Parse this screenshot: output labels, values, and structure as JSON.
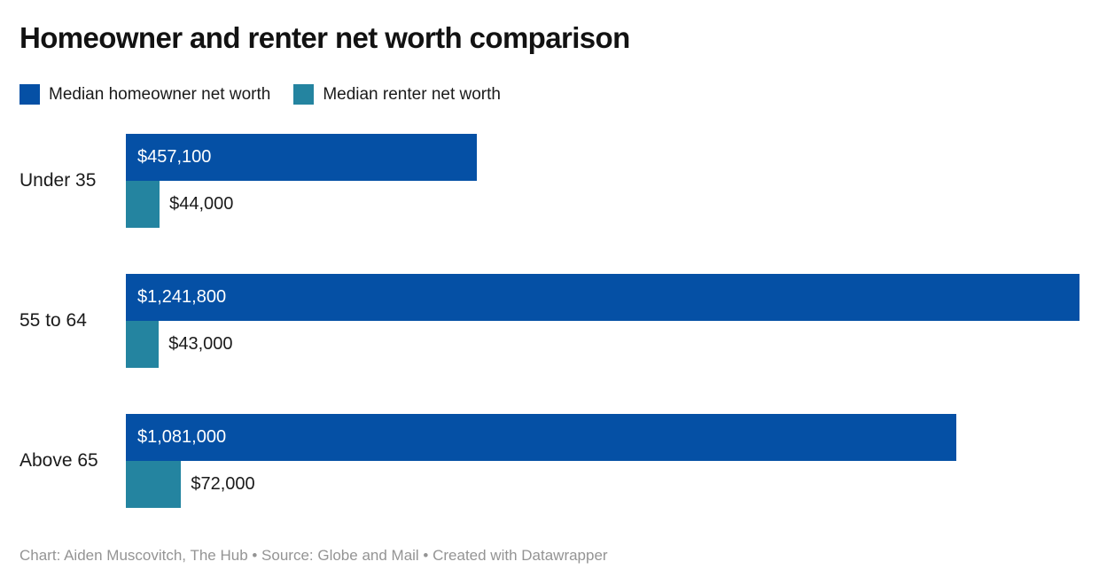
{
  "title": "Homeowner and renter net worth comparison",
  "legend": {
    "items": [
      {
        "label": "Median homeowner net worth",
        "color": "#0550a5"
      },
      {
        "label": "Median renter net worth",
        "color": "#2484a0"
      }
    ]
  },
  "chart_data": {
    "type": "bar",
    "orientation": "horizontal",
    "title": "Homeowner and renter net worth comparison",
    "categories": [
      "Under 35",
      "55 to 64",
      "Above 65"
    ],
    "series": [
      {
        "name": "Median homeowner net worth",
        "color": "#0550a5",
        "values": [
          457100,
          1241800,
          1081000
        ],
        "value_labels": [
          "$457,100",
          "$1,241,800",
          "$1,081,000"
        ],
        "label_position": "inside"
      },
      {
        "name": "Median renter net worth",
        "color": "#2484a0",
        "values": [
          44000,
          43000,
          72000
        ],
        "value_labels": [
          "$44,000",
          "$43,000",
          "$72,000"
        ],
        "label_position": "outside"
      }
    ],
    "xlim": [
      0,
      1241800
    ],
    "xlabel": "",
    "ylabel": "",
    "grid": false,
    "legend_position": "top"
  },
  "footer": {
    "text": "Chart: Aiden Muscovitch, The Hub • Source: Globe and Mail • Created with Datawrapper"
  }
}
